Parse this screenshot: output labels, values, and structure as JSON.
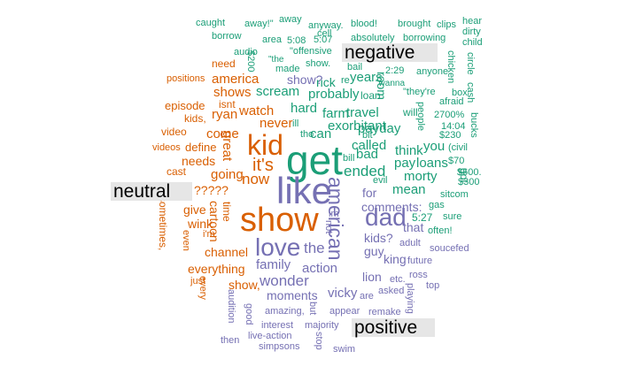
{
  "labels": {
    "negative": "negative",
    "neutral": "neutral",
    "positive": "positive"
  },
  "colors": {
    "negative": "#1b9e77",
    "neutral": "#d95f02",
    "positive": "#7570b3"
  },
  "words": {
    "negative": [
      "get",
      "caught",
      "away!\"",
      "away",
      "hear",
      "borrow",
      "area",
      "cell",
      "anyway.",
      "blood!",
      "brought",
      "clips",
      "dirty",
      "child",
      "5:08",
      "5:07",
      "absolutely",
      "borrowing",
      "\"offensive",
      "audio",
      "\"the",
      "$200",
      "show.",
      "bail",
      "2:29",
      "anyone",
      "chicken",
      "circle",
      "afraid",
      "cash",
      "made",
      "rick",
      "re",
      "\"wanna",
      "\"they're",
      "box",
      "probably",
      "years",
      "loan",
      "scream",
      "hard",
      "farm",
      "travel",
      "will",
      "2700%",
      "people",
      "ill",
      "tho",
      "can",
      "exorbitant",
      "payday",
      "14:04",
      "$230",
      "bucks",
      "bit",
      "room",
      "called",
      "think",
      "you",
      "(civil",
      "bill",
      "bad",
      "pay",
      "loans",
      "$70",
      "ended",
      "evil",
      "morty",
      "got",
      "$600.",
      "$300",
      "mean",
      "sitcom",
      "gas",
      "sure",
      "often!",
      "5:27"
    ],
    "neutral": [
      "need",
      "positions",
      "america",
      "episode",
      "isnt",
      "shows",
      "kids,",
      "ryan",
      "watch",
      "video",
      "come",
      "kid",
      "great",
      "never",
      "define",
      "videos",
      "needs",
      "it's",
      "now",
      "cast",
      "going",
      "?????",
      "give",
      "sometimes,",
      "wink",
      "cartoon",
      "time",
      "even",
      "i'm",
      "channel",
      "just",
      "everything",
      "show,",
      "every",
      "show"
    ],
    "positive": [
      "show?",
      "like",
      "dad",
      "american",
      "not",
      "im",
      "for",
      "comments:",
      "the",
      "love",
      "family",
      "kids?",
      "that",
      "adult",
      "guy",
      "king",
      "future",
      "soucefed",
      "action",
      "wonder",
      "lion",
      "etc.",
      "ross",
      "asked",
      "top",
      "moments",
      "vicky",
      "are",
      "playing",
      "audition",
      "good",
      "amazing,",
      "but",
      "appear",
      "remake",
      "interest",
      "majority",
      "stop",
      "then",
      "live-action",
      "simpsons",
      "swim"
    ]
  }
}
